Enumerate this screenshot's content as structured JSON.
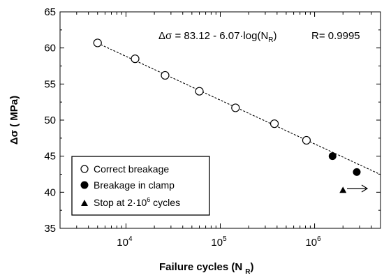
{
  "chart_data": {
    "type": "scatter",
    "xlabel": "Failure cycles (N",
    "xlabel_sub": "R",
    "xlabel_close": ")",
    "ylabel": "Δσ ( MPa)",
    "x_scale": "log",
    "xlim": [
      2000,
      5000000
    ],
    "ylim": [
      35,
      65
    ],
    "y_ticks": [
      35,
      40,
      45,
      50,
      55,
      60,
      65
    ],
    "x_ticks": [
      {
        "value": 10000,
        "base": "10",
        "exp": "4"
      },
      {
        "value": 100000,
        "base": "10",
        "exp": "5"
      },
      {
        "value": 1000000,
        "base": "10",
        "exp": "6"
      }
    ],
    "grid": false,
    "annotation": {
      "equation_prefix": "Δσ = 83.12 - 6.07·log(N",
      "equation_sub": "R",
      "equation_suffix": ")",
      "r_value": "R= 0.9995"
    },
    "fit_line": {
      "style": "dashed",
      "intercept": 83.12,
      "slope": -6.07
    },
    "legend_position": "bottom-left",
    "series": [
      {
        "name": "Correct breakage",
        "marker": "open-circle",
        "points": [
          {
            "x": 5000,
            "y": 60.7
          },
          {
            "x": 12500,
            "y": 58.5
          },
          {
            "x": 26000,
            "y": 56.2
          },
          {
            "x": 60000,
            "y": 54.0
          },
          {
            "x": 145000,
            "y": 51.7
          },
          {
            "x": 375000,
            "y": 49.5
          },
          {
            "x": 820000,
            "y": 47.2
          }
        ]
      },
      {
        "name": "Breakage in clamp",
        "marker": "filled-circle",
        "points": [
          {
            "x": 1550000,
            "y": 45.0
          },
          {
            "x": 2800000,
            "y": 42.8
          }
        ]
      },
      {
        "name_prefix": "Stop at 2·10",
        "name_sup": "6",
        "name_suffix": " cycles",
        "marker": "filled-triangle",
        "points": [
          {
            "x": 2000000,
            "y": 40.3
          }
        ]
      }
    ]
  }
}
